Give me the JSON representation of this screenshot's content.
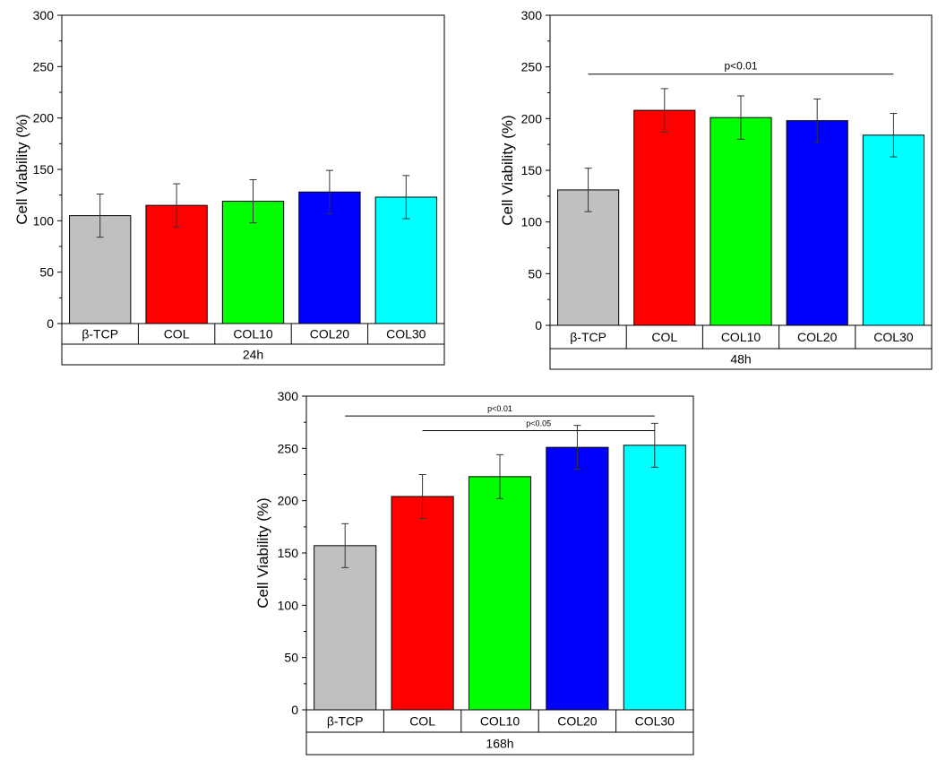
{
  "chart_data": [
    {
      "type": "bar",
      "ylabel": "Cell Viability (%)",
      "ylim": [
        0,
        300
      ],
      "yticks": [
        0,
        50,
        100,
        150,
        200,
        250,
        300
      ],
      "categories": [
        "β-TCP",
        "COL",
        "COL10",
        "COL20",
        "COL30"
      ],
      "group_label": "24h",
      "values": [
        105,
        115,
        119,
        128,
        123
      ],
      "errors": [
        21,
        21,
        21,
        21,
        21
      ],
      "colors": [
        "#c0c0c0",
        "#ff0000",
        "#00ff00",
        "#0000ff",
        "#00ffff"
      ],
      "significance": []
    },
    {
      "type": "bar",
      "ylabel": "Cell Viability (%)",
      "ylim": [
        0,
        300
      ],
      "yticks": [
        0,
        50,
        100,
        150,
        200,
        250,
        300
      ],
      "categories": [
        "β-TCP",
        "COL",
        "COL10",
        "COL20",
        "COL30"
      ],
      "group_label": "48h",
      "values": [
        131,
        208,
        201,
        198,
        184
      ],
      "errors": [
        21,
        21,
        21,
        21,
        21
      ],
      "colors": [
        "#c0c0c0",
        "#ff0000",
        "#00ff00",
        "#0000ff",
        "#00ffff"
      ],
      "significance": [
        {
          "label": "p<0.01",
          "from": 0,
          "to": 4,
          "y": 243
        }
      ]
    },
    {
      "type": "bar",
      "ylabel": "Cell Viability (%)",
      "ylim": [
        0,
        300
      ],
      "yticks": [
        0,
        50,
        100,
        150,
        200,
        250,
        300
      ],
      "categories": [
        "β-TCP",
        "COL",
        "COL10",
        "COL20",
        "COL30"
      ],
      "group_label": "168h",
      "values": [
        157,
        204,
        223,
        251,
        253
      ],
      "errors": [
        21,
        21,
        21,
        21,
        21
      ],
      "colors": [
        "#c0c0c0",
        "#ff0000",
        "#00ff00",
        "#0000ff",
        "#00ffff"
      ],
      "significance": [
        {
          "label": "p<0.01",
          "from": 0,
          "to": 4,
          "y": 281
        },
        {
          "label": "p<0.05",
          "from": 1,
          "to": 4,
          "y": 267
        }
      ]
    }
  ]
}
